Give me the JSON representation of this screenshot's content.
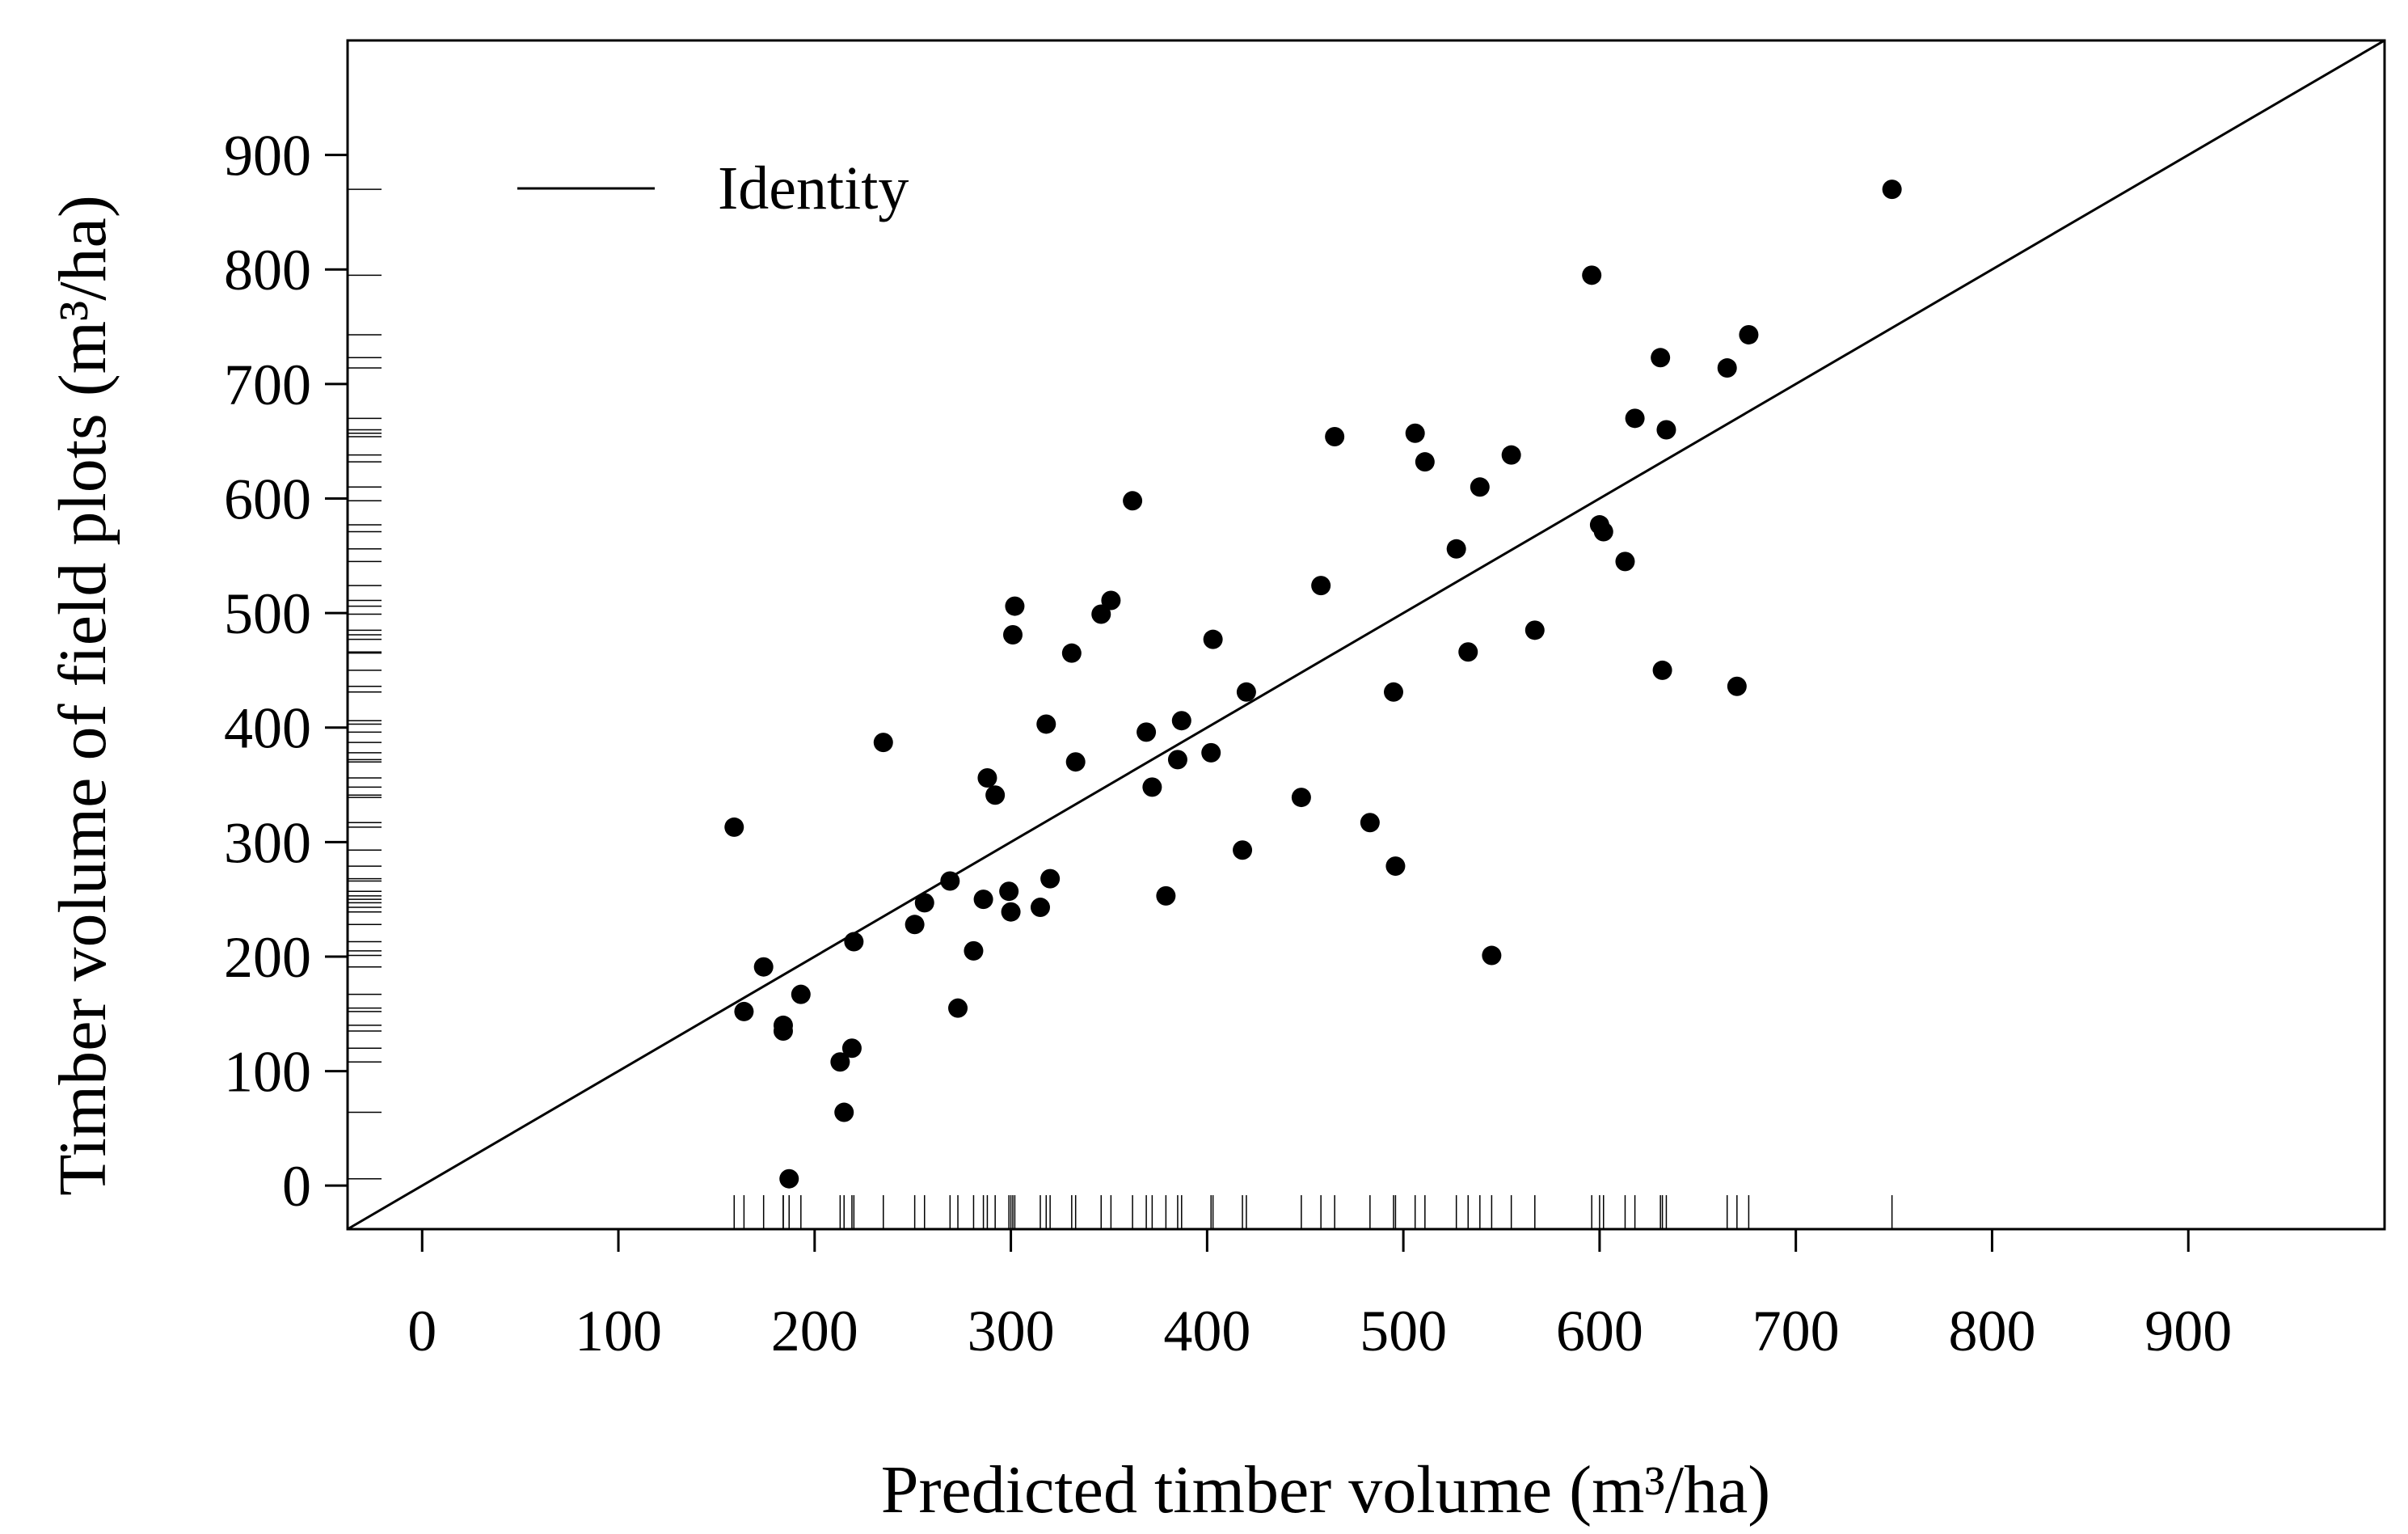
{
  "chart_data": {
    "type": "scatter",
    "xlabel": "Predicted timber volume (m³/ha)",
    "ylabel": "Timber volume of field plots (m³/ha)",
    "xlim": [
      -38,
      1000
    ],
    "ylim": [
      -38,
      1000
    ],
    "x_ticks": [
      0,
      100,
      200,
      300,
      400,
      500,
      600,
      700,
      800,
      900
    ],
    "y_ticks": [
      0,
      100,
      200,
      300,
      400,
      500,
      600,
      700,
      800,
      900
    ],
    "grid": false,
    "rug": true,
    "legend": {
      "position": "top-left",
      "entries": [
        {
          "label": "Identity",
          "style": "line"
        }
      ]
    },
    "reference_line": {
      "name": "Identity",
      "slope": 1,
      "intercept": 0
    },
    "series": [
      {
        "points": [
          [
            159,
            313
          ],
          [
            164,
            152
          ],
          [
            174,
            191
          ],
          [
            184,
            140
          ],
          [
            184,
            135
          ],
          [
            187,
            6
          ],
          [
            193,
            167
          ],
          [
            213,
            108
          ],
          [
            215,
            64
          ],
          [
            219,
            120
          ],
          [
            220,
            213
          ],
          [
            235,
            387
          ],
          [
            251,
            228
          ],
          [
            256,
            247
          ],
          [
            269,
            266
          ],
          [
            273,
            155
          ],
          [
            281,
            205
          ],
          [
            286,
            250
          ],
          [
            288,
            356
          ],
          [
            292,
            341
          ],
          [
            299,
            257
          ],
          [
            300,
            239
          ],
          [
            301,
            481
          ],
          [
            302,
            506
          ],
          [
            315,
            243
          ],
          [
            318,
            403
          ],
          [
            320,
            268
          ],
          [
            331,
            465
          ],
          [
            333,
            370
          ],
          [
            346,
            499
          ],
          [
            351,
            511
          ],
          [
            362,
            598
          ],
          [
            369,
            396
          ],
          [
            372,
            348
          ],
          [
            379,
            253
          ],
          [
            385,
            372
          ],
          [
            387,
            406
          ],
          [
            402,
            378
          ],
          [
            403,
            477
          ],
          [
            418,
            293
          ],
          [
            420,
            431
          ],
          [
            448,
            339
          ],
          [
            458,
            524
          ],
          [
            465,
            654
          ],
          [
            483,
            317
          ],
          [
            495,
            431
          ],
          [
            496,
            279
          ],
          [
            506,
            657
          ],
          [
            511,
            632
          ],
          [
            527,
            556
          ],
          [
            533,
            466
          ],
          [
            539,
            610
          ],
          [
            545,
            201
          ],
          [
            555,
            638
          ],
          [
            567,
            485
          ],
          [
            596,
            795
          ],
          [
            600,
            577
          ],
          [
            602,
            571
          ],
          [
            613,
            545
          ],
          [
            618,
            670
          ],
          [
            631,
            723
          ],
          [
            632,
            450
          ],
          [
            634,
            660
          ],
          [
            665,
            714
          ],
          [
            670,
            436
          ],
          [
            676,
            743
          ],
          [
            749,
            870
          ]
        ]
      }
    ]
  }
}
